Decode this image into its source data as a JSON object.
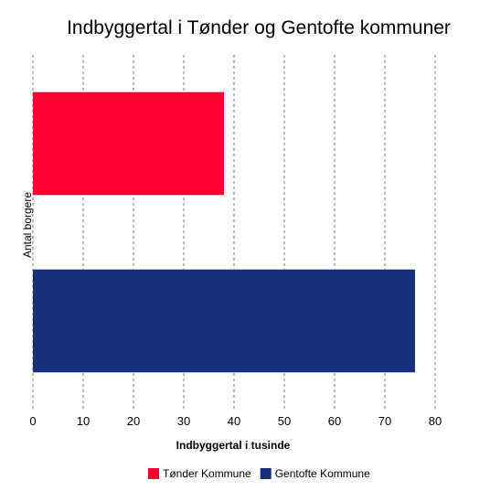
{
  "chart_data": {
    "type": "bar",
    "orientation": "horizontal",
    "title": "Indbyggertal i Tønder og Gentofte kommuner",
    "xlabel": "Indbyggertal i tusinde",
    "ylabel": "Antal borgere",
    "xlim": [
      0,
      80
    ],
    "xticks": [
      0,
      10,
      20,
      30,
      40,
      50,
      60,
      70,
      80
    ],
    "grid": "vertical-dashed",
    "legend_position": "bottom",
    "series": [
      {
        "name": "Tønder Kommune",
        "value": 38,
        "color": "#ff0033"
      },
      {
        "name": "Gentofte Kommune",
        "value": 76,
        "color": "#17307a"
      }
    ]
  }
}
